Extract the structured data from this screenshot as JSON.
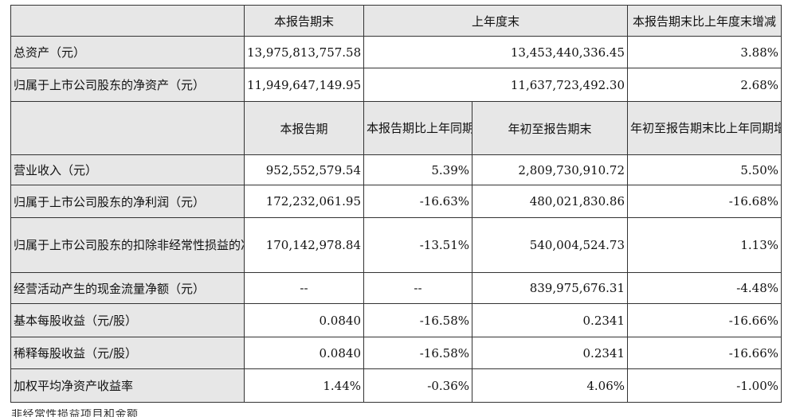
{
  "top_header": {
    "blank": "",
    "col1": "本报告期末",
    "col2": "上年度末",
    "col3": "本报告期末比上年度末增减"
  },
  "balance_rows": [
    {
      "label": "总资产（元）",
      "current": "13,975,813,757.58",
      "prior": "13,453,440,336.45",
      "change": "3.88%"
    },
    {
      "label": "归属于上市公司股东的净资产（元）",
      "current": "11,949,647,149.95",
      "prior": "11,637,723,492.30",
      "change": "2.68%"
    }
  ],
  "second_header": {
    "blank": "",
    "col1": "本报告期",
    "col2": "本报告期比上年同期增减",
    "col3": "年初至报告期末",
    "col4": "年初至报告期末比上年同期增减"
  },
  "income_rows": [
    {
      "label": "营业收入（元）",
      "period": "952,552,579.54",
      "period_change": "5.39%",
      "ytd": "2,809,730,910.72",
      "ytd_change": "5.50%"
    },
    {
      "label": "归属于上市公司股东的净利润（元）",
      "period": "172,232,061.95",
      "period_change": "-16.63%",
      "ytd": "480,021,830.86",
      "ytd_change": "-16.68%"
    },
    {
      "label": "归属于上市公司股东的扣除非经常性损益的净利润（元）",
      "period": "170,142,978.84",
      "period_change": "-13.51%",
      "ytd": "540,004,524.73",
      "ytd_change": "1.13%"
    },
    {
      "label": "经营活动产生的现金流量净额（元）",
      "period": "--",
      "period_change": "--",
      "ytd": "839,975,676.31",
      "ytd_change": "-4.48%"
    },
    {
      "label": "基本每股收益（元/股）",
      "period": "0.0840",
      "period_change": "-16.58%",
      "ytd": "0.2341",
      "ytd_change": "-16.66%"
    },
    {
      "label": "稀释每股收益（元/股）",
      "period": "0.0840",
      "period_change": "-16.58%",
      "ytd": "0.2341",
      "ytd_change": "-16.66%"
    },
    {
      "label": "加权平均净资产收益率",
      "period": "1.44%",
      "period_change": "-0.36%",
      "ytd": "4.06%",
      "ytd_change": "-1.00%"
    }
  ],
  "cutoff_text": "非经常性损益项目和金额"
}
